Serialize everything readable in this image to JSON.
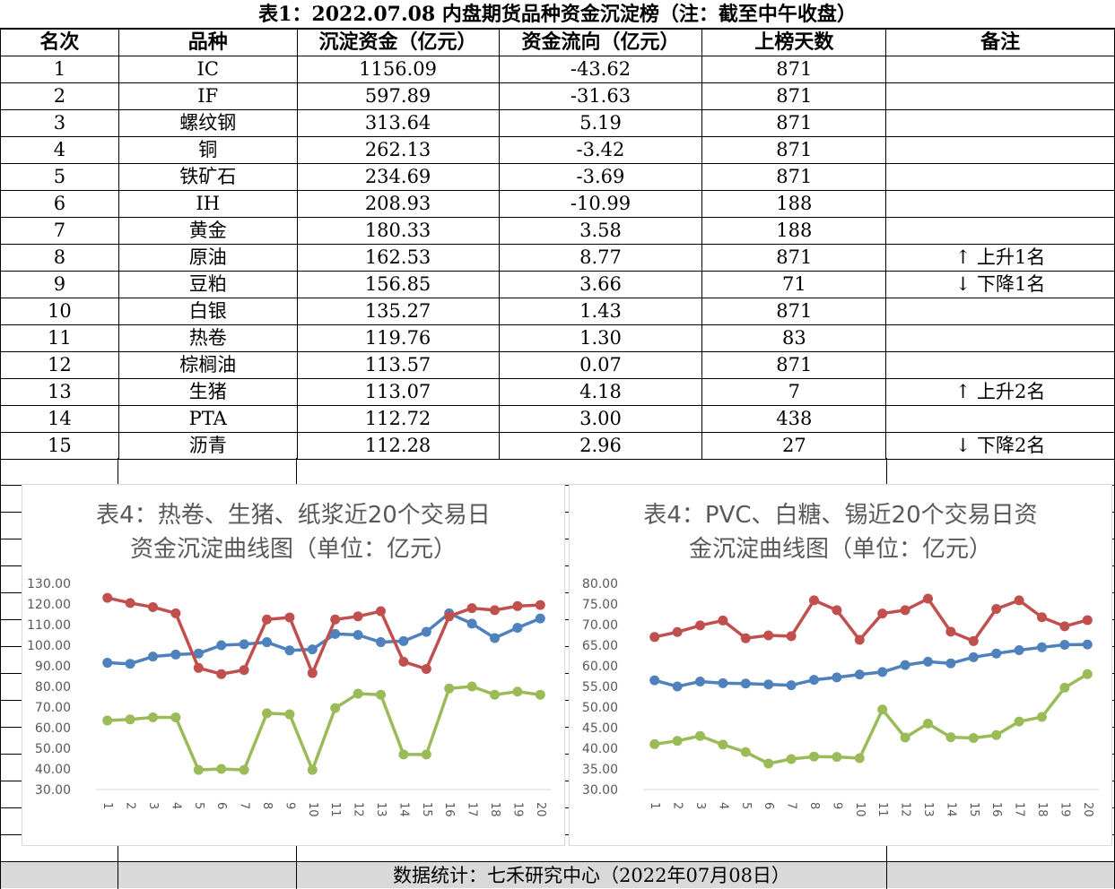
{
  "title": "表1：2022.07.08 内盘期货品种资金沉淀榜（注：截至中午收盘）",
  "columns": [
    "名次",
    "品种",
    "沉淀资金（亿元）",
    "资金流向（亿元）",
    "上榜天数",
    "备注"
  ],
  "rows": [
    {
      "rank": "1",
      "name": "IC",
      "fund": "1156.09",
      "flow": "-43.62",
      "days": "871",
      "note": ""
    },
    {
      "rank": "2",
      "name": "IF",
      "fund": "597.89",
      "flow": "-31.63",
      "days": "871",
      "note": ""
    },
    {
      "rank": "3",
      "name": "螺纹钢",
      "fund": "313.64",
      "flow": "5.19",
      "days": "871",
      "note": ""
    },
    {
      "rank": "4",
      "name": "铜",
      "fund": "262.13",
      "flow": "-3.42",
      "days": "871",
      "note": ""
    },
    {
      "rank": "5",
      "name": "铁矿石",
      "fund": "234.69",
      "flow": "-3.69",
      "days": "871",
      "note": ""
    },
    {
      "rank": "6",
      "name": "IH",
      "fund": "208.93",
      "flow": "-10.99",
      "days": "188",
      "note": ""
    },
    {
      "rank": "7",
      "name": "黄金",
      "fund": "180.33",
      "flow": "3.58",
      "days": "188",
      "note": ""
    },
    {
      "rank": "8",
      "name": "原油",
      "fund": "162.53",
      "flow": "8.77",
      "days": "871",
      "note": "↑ 上升1名"
    },
    {
      "rank": "9",
      "name": "豆粕",
      "fund": "156.85",
      "flow": "3.66",
      "days": "71",
      "note": "↓ 下降1名"
    },
    {
      "rank": "10",
      "name": "白银",
      "fund": "135.27",
      "flow": "1.43",
      "days": "871",
      "note": ""
    },
    {
      "rank": "11",
      "name": "热卷",
      "fund": "119.76",
      "flow": "1.30",
      "days": "83",
      "note": ""
    },
    {
      "rank": "12",
      "name": "棕榈油",
      "fund": "113.57",
      "flow": "0.07",
      "days": "871",
      "note": ""
    },
    {
      "rank": "13",
      "name": "生猪",
      "fund": "113.07",
      "flow": "4.18",
      "days": "7",
      "note": "↑ 上升2名"
    },
    {
      "rank": "14",
      "name": "PTA",
      "fund": "112.72",
      "flow": "3.00",
      "days": "438",
      "note": ""
    },
    {
      "rank": "15",
      "name": "沥青",
      "fund": "112.28",
      "flow": "2.96",
      "days": "27",
      "note": "↓ 下降2名"
    }
  ],
  "footer": "数据统计：七禾研究中心（2022年07月08日）",
  "chart_data": [
    {
      "type": "line",
      "title_line1": "表4：热卷、生猪、纸浆近20个交易日",
      "title_line2": "资金沉淀曲线图（单位：亿元）",
      "x": [
        "1",
        "2",
        "3",
        "4",
        "5",
        "6",
        "7",
        "8",
        "9",
        "10",
        "11",
        "12",
        "13",
        "14",
        "15",
        "16",
        "17",
        "18",
        "19",
        "20"
      ],
      "yticks": [
        "130.00",
        "120.00",
        "110.00",
        "100.00",
        "90.00",
        "80.00",
        "70.00",
        "60.00",
        "50.00",
        "40.00",
        "30.00"
      ],
      "ylim": [
        30,
        130
      ],
      "series": [
        {
          "color": "#4f81bd",
          "values": [
            91.5,
            91,
            94.5,
            95.5,
            96,
            100,
            100.5,
            101.5,
            97.5,
            98,
            105.5,
            105,
            101.5,
            102,
            106.5,
            115.5,
            110.5,
            103.5,
            108.5,
            113
          ]
        },
        {
          "color": "#c0504d",
          "values": [
            123,
            120.5,
            118.5,
            115.5,
            89,
            86,
            88,
            112.5,
            113.5,
            86.5,
            112.5,
            114,
            116.5,
            92,
            88.5,
            114,
            118,
            117,
            119,
            119.5
          ]
        },
        {
          "color": "#9bbb59",
          "values": [
            63.5,
            64,
            65,
            65,
            39.5,
            40,
            39.5,
            67,
            66.5,
            39.5,
            69.5,
            76.5,
            76,
            47,
            47,
            79,
            80,
            76,
            77.5,
            76
          ]
        }
      ]
    },
    {
      "type": "line",
      "title_line1": "表4：PVC、白糖、锡近20个交易日资",
      "title_line2": "金沉淀曲线图（单位：亿元）",
      "x": [
        "1",
        "2",
        "3",
        "4",
        "5",
        "6",
        "7",
        "8",
        "9",
        "10",
        "11",
        "12",
        "13",
        "14",
        "15",
        "16",
        "17",
        "18",
        "19",
        "20"
      ],
      "yticks": [
        "80.00",
        "75.00",
        "70.00",
        "65.00",
        "60.00",
        "55.00",
        "50.00",
        "45.00",
        "40.00",
        "35.00",
        "30.00"
      ],
      "ylim": [
        30,
        80
      ],
      "series": [
        {
          "color": "#4f81bd",
          "values": [
            56.5,
            55,
            56.2,
            55.8,
            55.7,
            55.5,
            55.3,
            56.6,
            57.2,
            57.9,
            58.5,
            60.2,
            61,
            60.6,
            62.1,
            63,
            63.8,
            64.5,
            65.1,
            65.2
          ]
        },
        {
          "color": "#c0504d",
          "values": [
            67,
            68.2,
            69.8,
            71,
            66.7,
            67.4,
            67.2,
            75.9,
            73.5,
            66.3,
            72.7,
            73.5,
            76.3,
            68.3,
            66,
            73.8,
            75.9,
            71.8,
            69.6,
            71.1
          ]
        },
        {
          "color": "#9bbb59",
          "values": [
            41,
            41.8,
            43,
            40.9,
            39.1,
            36.3,
            37.4,
            38,
            37.9,
            37.6,
            49.4,
            42.6,
            46,
            42.7,
            42.5,
            43.2,
            46.5,
            47.6,
            54.7,
            58
          ]
        }
      ]
    }
  ]
}
